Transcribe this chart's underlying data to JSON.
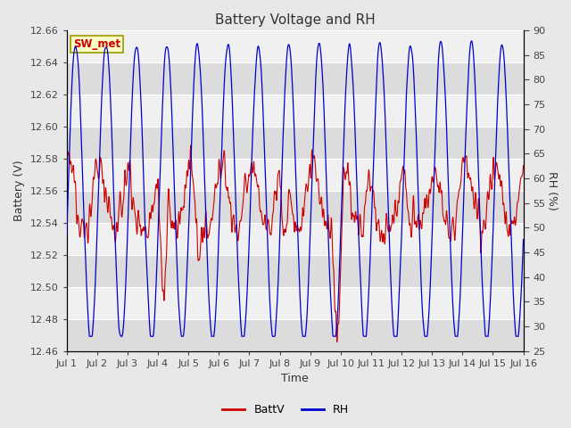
{
  "title": "Battery Voltage and RH",
  "xlabel": "Time",
  "ylabel_left": "Battery (V)",
  "ylabel_right": "RH (%)",
  "station_label": "SW_met",
  "batt_ylim": [
    12.46,
    12.66
  ],
  "batt_yticks": [
    12.46,
    12.48,
    12.5,
    12.52,
    12.54,
    12.56,
    12.58,
    12.6,
    12.62,
    12.64,
    12.66
  ],
  "rh_ylim": [
    25,
    90
  ],
  "rh_yticks": [
    25,
    30,
    35,
    40,
    45,
    50,
    55,
    60,
    65,
    70,
    75,
    80,
    85,
    90
  ],
  "batt_color": "#cc0000",
  "rh_color": "#0000cc",
  "bg_color": "#e8e8e8",
  "plot_bg_light": "#f0f0f0",
  "plot_bg_dark": "#dcdcdc",
  "grid_color": "#f5f5f5",
  "legend_batt": "BattV",
  "legend_rh": "RH",
  "title_fontsize": 11,
  "axis_fontsize": 9,
  "tick_fontsize": 8,
  "n_days": 15
}
